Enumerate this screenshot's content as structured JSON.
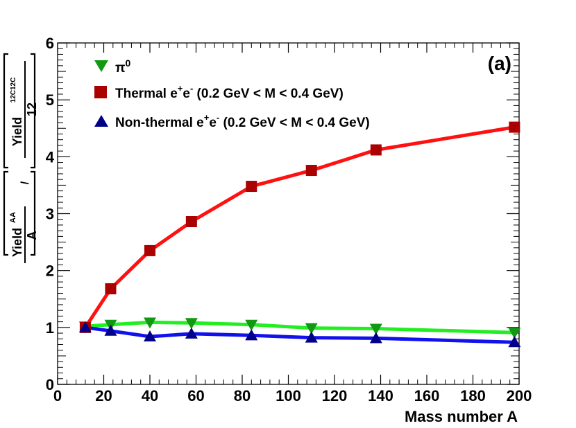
{
  "chart_data": {
    "type": "line",
    "panel_label": "(a)",
    "xlabel": "Mass number A",
    "ylabel": {
      "left_term": "Yield",
      "left_sup": "AA",
      "left_den": "A",
      "divider": "/",
      "right_term": "Yield",
      "right_sup": "12C12C",
      "right_den": "12"
    },
    "xlim": [
      0,
      200
    ],
    "ylim": [
      0,
      6
    ],
    "x_ticks": [
      "0",
      "20",
      "40",
      "60",
      "80",
      "100",
      "120",
      "140",
      "160",
      "180",
      "200"
    ],
    "y_ticks": [
      "0",
      "1",
      "2",
      "3",
      "4",
      "5",
      "6"
    ],
    "legend_position": "top-left",
    "series": [
      {
        "name": "π0",
        "label_main": "π",
        "label_sup": "0",
        "marker": "triangle-down",
        "line_color": "#22ee22",
        "marker_color": "#119911",
        "x": [
          12,
          23,
          40,
          58,
          84,
          110,
          138,
          198
        ],
        "values": [
          1.02,
          1.05,
          1.09,
          1.08,
          1.05,
          0.99,
          0.98,
          0.91
        ]
      },
      {
        "name": "Thermal e+e- (0.2 GeV < M < 0.4 GeV)",
        "label_main": "Thermal e",
        "label_sup1": "+",
        "label_mid": "e",
        "label_sup2": "-",
        "label_tail": " (0.2 GeV < M < 0.4 GeV)",
        "marker": "square",
        "line_color": "#ff1111",
        "marker_color": "#aa0000",
        "x": [
          12,
          23,
          40,
          58,
          84,
          110,
          138,
          198
        ],
        "values": [
          1.0,
          1.68,
          2.35,
          2.86,
          3.48,
          3.76,
          4.12,
          4.52
        ]
      },
      {
        "name": "Non-thermal e+e- (0.2 GeV < M < 0.4 GeV)",
        "label_main": "Non-thermal e",
        "label_sup1": "+",
        "label_mid": "e",
        "label_sup2": "-",
        "label_tail": " (0.2 GeV < M < 0.4 GeV)",
        "marker": "triangle-up",
        "line_color": "#1111ee",
        "marker_color": "#000088",
        "x": [
          12,
          23,
          40,
          58,
          84,
          110,
          138,
          198
        ],
        "values": [
          1.0,
          0.94,
          0.84,
          0.89,
          0.86,
          0.82,
          0.81,
          0.74
        ]
      }
    ]
  }
}
